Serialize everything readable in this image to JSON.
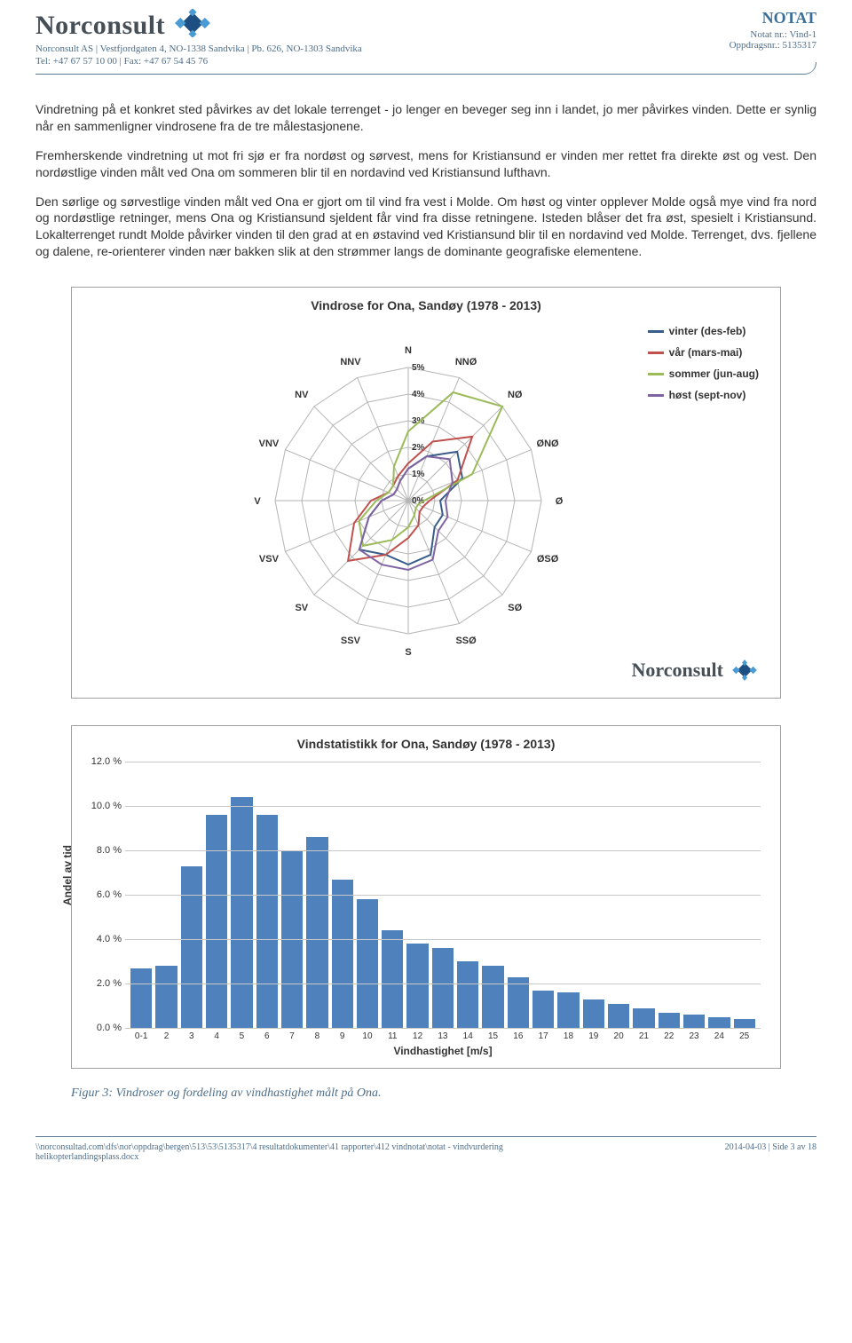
{
  "header": {
    "company": "Norconsult",
    "address_line1": "Norconsult AS | Vestfjordgaten 4, NO-1338 Sandvika | Pb. 626, NO-1303 Sandvika",
    "address_line2": "Tel: +47 67 57 10 00 | Fax: +47 67 54 45 76",
    "notat_label": "NOTAT",
    "notat_nr": "Notat nr.: Vind-1",
    "oppdrag": "Oppdragsnr.: 5135317"
  },
  "paragraphs": {
    "p1": "Vindretning på et konkret sted påvirkes av det lokale terrenget - jo lenger en beveger seg inn i landet, jo mer påvirkes vinden. Dette er synlig når en sammenligner vindrosene fra de tre målestasjonene.",
    "p2": "Fremherskende vindretning ut mot fri sjø er fra nordøst og sørvest, mens for Kristiansund er vinden mer rettet fra direkte øst og vest. Den nordøstlige vinden målt ved Ona om sommeren blir til en nordavind ved Kristiansund lufthavn.",
    "p3": "Den sørlige og sørvestlige vinden målt ved Ona er gjort om til vind fra vest i Molde. Om høst og vinter opplever Molde også mye vind fra nord og nordøstlige retninger, mens Ona og Kristiansund sjeldent får vind fra disse retningene. Isteden blåser det fra øst, spesielt i Kristiansund. Lokalterrenget rundt Molde påvirker vinden til den grad at en østavind ved Kristiansund blir til en nordavind ved Molde. Terrenget, dvs. fjellene og dalene, re-orienterer vinden nær bakken slik at den strømmer langs de dominante geografiske elementene."
  },
  "radar": {
    "title": "Vindrose for Ona, Sandøy (1978 - 2013)",
    "directions": [
      "N",
      "NNØ",
      "NØ",
      "ØNØ",
      "Ø",
      "ØSØ",
      "SØ",
      "SSØ",
      "S",
      "SSV",
      "SV",
      "VSV",
      "V",
      "VNV",
      "NV",
      "NNV"
    ],
    "rings": [
      1,
      2,
      3,
      4,
      5
    ],
    "ring_suffix": "%",
    "max": 5,
    "legend": [
      {
        "label": "vinter (des-feb)",
        "color": "#385d8a"
      },
      {
        "label": "vår (mars-mai)",
        "color": "#c0504d"
      },
      {
        "label": "sommer (jun-aug)",
        "color": "#9bbb59"
      },
      {
        "label": "høst (sept-nov)",
        "color": "#8064a2"
      }
    ],
    "grid_color": "#b5b5b5",
    "series": {
      "vinter": [
        1.2,
        1.8,
        2.6,
        2.2,
        1.2,
        1.4,
        1.4,
        2.2,
        2.4,
        2.2,
        2.6,
        1.6,
        1.0,
        0.6,
        0.6,
        0.8
      ],
      "var": [
        1.4,
        2.4,
        3.4,
        2.0,
        0.8,
        0.6,
        0.6,
        1.0,
        1.4,
        2.2,
        3.2,
        2.2,
        1.4,
        0.8,
        0.8,
        1.0
      ],
      "sommer": [
        2.6,
        4.4,
        5.0,
        2.6,
        0.6,
        0.4,
        0.4,
        0.6,
        1.0,
        1.6,
        2.4,
        2.0,
        1.2,
        0.8,
        0.8,
        1.4
      ],
      "host": [
        1.2,
        1.8,
        2.2,
        1.8,
        1.4,
        1.6,
        1.6,
        2.4,
        2.6,
        2.6,
        2.6,
        1.6,
        1.0,
        0.6,
        0.6,
        0.8
      ]
    },
    "series_colors": {
      "vinter": "#385d8a",
      "var": "#c0504d",
      "sommer": "#9bbb59",
      "host": "#8064a2"
    },
    "line_width": 2
  },
  "bar": {
    "title": "Vindstatistikk for Ona, Sandøy (1978 - 2013)",
    "ylabel": "Andel av tid",
    "xlabel": "Vindhastighet [m/s]",
    "ymax": 12.0,
    "ytick_step": 2.0,
    "ytick_suffix": " %",
    "categories": [
      "0-1",
      "2",
      "3",
      "4",
      "5",
      "6",
      "7",
      "8",
      "9",
      "10",
      "11",
      "12",
      "13",
      "14",
      "15",
      "16",
      "17",
      "18",
      "19",
      "20",
      "21",
      "22",
      "23",
      "24",
      "25"
    ],
    "values": [
      2.7,
      2.8,
      7.3,
      9.6,
      10.4,
      9.6,
      8.0,
      8.6,
      6.7,
      5.8,
      4.4,
      3.8,
      3.6,
      3.0,
      2.8,
      2.3,
      1.7,
      1.6,
      1.3,
      1.1,
      0.9,
      0.7,
      0.6,
      0.5,
      0.4
    ],
    "bar_color": "#4f81bd",
    "grid_color": "#c8c8c8",
    "border_color": "#a0a0a0",
    "title_fontsize": 14
  },
  "caption": "Figur 3: Vindroser og fordeling av vindhastighet målt på Ona.",
  "footer": {
    "path": "\\\\norconsultad.com\\dfs\\nor\\oppdrag\\bergen\\513\\53\\5135317\\4 resultatdokumenter\\41 rapporter\\412 vindnotat\\notat - vindvurdering helikopterlandingsplass.docx",
    "date_page": "2014-04-03 | Side 3 av 18"
  },
  "logo_colors": {
    "dark": "#1d4f82",
    "light": "#4a9bd4"
  }
}
